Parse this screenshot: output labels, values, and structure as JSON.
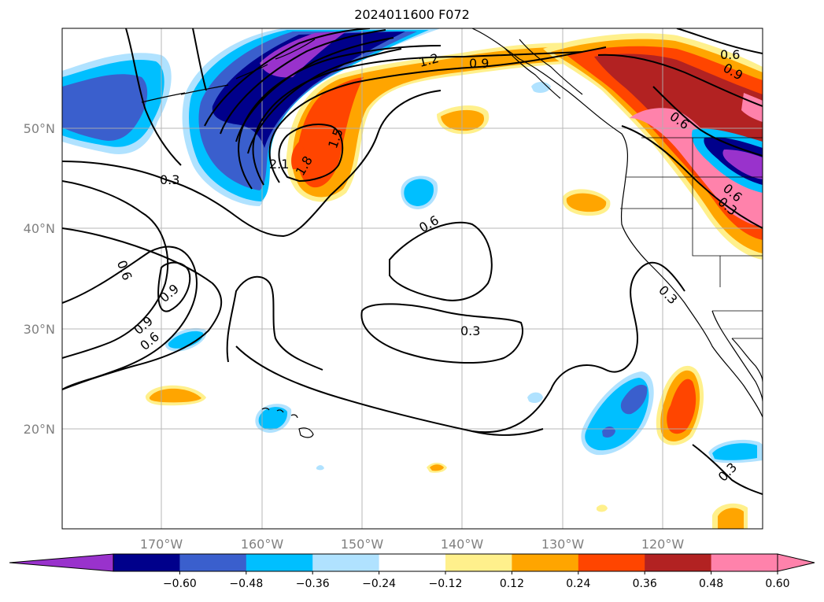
{
  "title": "2024011600 F072",
  "map": {
    "projection": "PlateCarree",
    "lon_range": [
      -180,
      -110
    ],
    "lat_range": [
      10,
      60
    ],
    "lon_ticks": [
      "170°W",
      "160°W",
      "150°W",
      "140°W",
      "130°W",
      "120°W"
    ],
    "lat_ticks": [
      "50°N",
      "40°N",
      "30°N",
      "20°N"
    ],
    "gridlines": true,
    "contour_labels": [
      "0.3",
      "0.6",
      "0.9",
      "0.9",
      "0.6",
      "0.9",
      "0.6",
      "0.3",
      "1.2",
      "1.5",
      "1.8",
      "2.1",
      "0.6",
      "0.9",
      "0.6",
      "0.6",
      "0.3",
      "0.3",
      "0.3"
    ]
  },
  "colorbar": {
    "colors": [
      "#9932cc",
      "#00008b",
      "#3a5fcd",
      "#00bfff",
      "#b0e2ff",
      "#ffffff",
      "#fff08c",
      "#ffa500",
      "#ff4500",
      "#b22222",
      "#ff82ab",
      "#ff82ab"
    ],
    "tick_labels": [
      "−0.60",
      "−0.48",
      "−0.36",
      "−0.24",
      "−0.12",
      "0.12",
      "0.24",
      "0.36",
      "0.48",
      "0.60"
    ]
  },
  "colors": {
    "grid": "#b0b0b0",
    "tick_text": "#808080"
  }
}
